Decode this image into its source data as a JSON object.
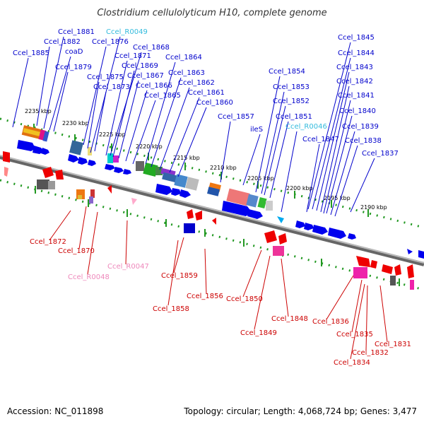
{
  "title": "Clostridium cellulolyticum H10, complete genome",
  "footer": {
    "accession": "Accession: NC_011898",
    "topology": "Topology: circular; Length: 4,068,724 bp; Genes: 3,477"
  },
  "colors": {
    "forward_label": "#0000cc",
    "reverse_label": "#cc0000",
    "rna_forward_label": "#33bbdd",
    "rna_reverse_label": "#ee88bb",
    "backbone": "#888888",
    "ticks": "#229922"
  },
  "scale_labels": [
    "2235 kbp",
    "2230 kbp",
    "2225 kbp",
    "2220 kbp",
    "2215 kbp",
    "2210 kbp",
    "2205 kbp",
    "2200 kbp",
    "2195 kbp",
    "2190 kbp"
  ],
  "forward_labels": [
    "Ccel_1885",
    "Ccel_1882",
    "Ccel_1881",
    "coaD",
    "Ccel_1879",
    "Ccel_R0049",
    "Ccel_1876",
    "Ccel_1875",
    "Ccel_1873",
    "Ccel_1871",
    "Ccel_1868",
    "Ccel_1869",
    "Ccel_1867",
    "Ccel_1866",
    "Ccel_1865",
    "Ccel_1864",
    "Ccel_1863",
    "Ccel_1862",
    "Ccel_1861",
    "Ccel_1860",
    "Ccel_1857",
    "ileS",
    "Ccel_1854",
    "Ccel_1853",
    "Ccel_1852",
    "Ccel_1851",
    "Ccel_R0046",
    "Ccel_1847",
    "Ccel_1845",
    "Ccel_1844",
    "Ccel_1843",
    "Ccel_1842",
    "Ccel_1841",
    "Ccel_1840",
    "Ccel_1839",
    "Ccel_1838",
    "Ccel_1837"
  ],
  "reverse_labels": [
    "Ccel_1872",
    "Ccel_1870",
    "Ccel_R0048",
    "Ccel_R0047",
    "Ccel_1859",
    "Ccel_1858",
    "Ccel_1856",
    "Ccel_1850",
    "Ccel_1849",
    "Ccel_1848",
    "Ccel_1836",
    "Ccel_1835",
    "Ccel_1834",
    "Ccel_1832",
    "Ccel_1831"
  ]
}
